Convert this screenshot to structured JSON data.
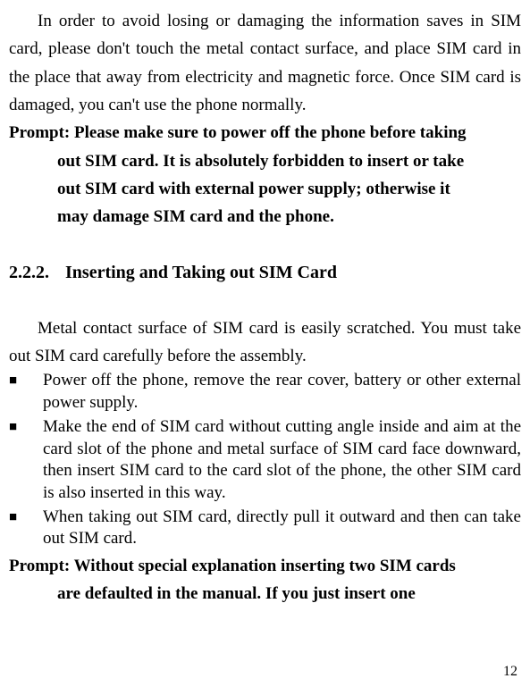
{
  "intro_para": "In order to avoid losing or damaging the information saves in SIM card, please don't touch the metal contact surface, and place SIM card in the place that away from electricity and magnetic force. Once SIM card is damaged, you can't use the phone normally.",
  "prompt1_first": "Prompt: Please make sure to power off the phone before taking",
  "prompt1_line2": "out SIM card. It is absolutely forbidden to insert or take",
  "prompt1_line3": "out SIM card with external power supply; otherwise it",
  "prompt1_line4": "may damage SIM card and the phone.",
  "section_number": "2.2.2.",
  "section_title": "Inserting and Taking out SIM Card",
  "body_para": "Metal contact surface of SIM card is easily scratched. You must take out SIM card carefully before the assembly.",
  "bullets": [
    "Power off the phone, remove the rear cover, battery or other external power supply.",
    "Make the end of SIM card without cutting angle inside and aim at the card slot of the phone and metal surface of SIM card face downward, then insert SIM card to the card slot of the phone, the other SIM card is also inserted in this way.",
    "When taking out SIM card, directly pull it outward and then can take out SIM card."
  ],
  "prompt2_first": "Prompt: Without special explanation inserting two SIM cards",
  "prompt2_line2": "are defaulted in the manual. If you just insert one",
  "page_number": "12",
  "colors": {
    "background": "#ffffff",
    "text": "#000000"
  },
  "typography": {
    "body_fontsize": 19,
    "heading_fontsize": 20,
    "page_number_fontsize": 16,
    "font_family": "Times New Roman"
  }
}
